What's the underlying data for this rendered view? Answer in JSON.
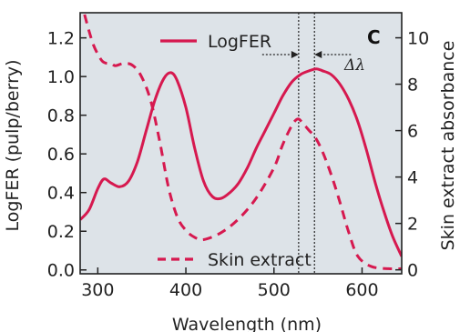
{
  "chart_data": {
    "type": "line",
    "panel_label": "C",
    "xlabel": "Wavelength (nm)",
    "ylabel_left": "LogFER (pulp/berry)",
    "ylabel_right": "Skin extract absorbance",
    "xlim": [
      280,
      645
    ],
    "ylim_left": [
      -0.02,
      1.33
    ],
    "ylim_right": [
      -0.17,
      11.08
    ],
    "x_ticks": [
      300,
      400,
      500,
      600
    ],
    "y_ticks_left": [
      0.0,
      0.2,
      0.4,
      0.6,
      0.8,
      1.0,
      1.2
    ],
    "y_ticks_right": [
      0,
      2,
      4,
      6,
      8,
      10
    ],
    "grid": false,
    "background": "#dde3e8",
    "series_color": "#d6194f",
    "series": [
      {
        "name": "LogFER",
        "axis": "left",
        "style": "solid",
        "x": [
          280,
          290,
          300,
          307,
          315,
          325,
          335,
          345,
          355,
          365,
          375,
          383,
          390,
          400,
          410,
          420,
          430,
          440,
          450,
          460,
          470,
          480,
          490,
          500,
          510,
          520,
          530,
          540,
          548,
          555,
          565,
          575,
          585,
          595,
          605,
          615,
          625,
          635,
          645
        ],
        "y": [
          0.26,
          0.31,
          0.42,
          0.47,
          0.45,
          0.43,
          0.46,
          0.56,
          0.72,
          0.88,
          0.99,
          1.02,
          0.98,
          0.84,
          0.63,
          0.46,
          0.38,
          0.37,
          0.4,
          0.45,
          0.53,
          0.63,
          0.72,
          0.81,
          0.9,
          0.97,
          1.01,
          1.03,
          1.04,
          1.03,
          1.01,
          0.96,
          0.88,
          0.77,
          0.62,
          0.45,
          0.3,
          0.17,
          0.07
        ]
      },
      {
        "name": "Skin extract",
        "axis": "right",
        "style": "dashed",
        "x": [
          285,
          290,
          295,
          300,
          305,
          310,
          315,
          320,
          330,
          340,
          350,
          360,
          370,
          380,
          390,
          400,
          410,
          420,
          440,
          460,
          480,
          500,
          510,
          520,
          527,
          533,
          540,
          547,
          555,
          565,
          575,
          585,
          595,
          610,
          630,
          645
        ],
        "y": [
          11.0,
          10.3,
          9.7,
          9.3,
          9.0,
          8.9,
          8.9,
          8.8,
          8.9,
          8.8,
          8.3,
          7.3,
          5.6,
          3.6,
          2.3,
          1.7,
          1.4,
          1.3,
          1.6,
          2.2,
          3.1,
          4.4,
          5.4,
          6.2,
          6.5,
          6.3,
          6.0,
          5.7,
          5.1,
          4.1,
          2.9,
          1.6,
          0.6,
          0.15,
          0.05,
          0.05
        ]
      }
    ],
    "annotation": {
      "label": "Δλ",
      "x1": 528,
      "x2": 546
    }
  }
}
